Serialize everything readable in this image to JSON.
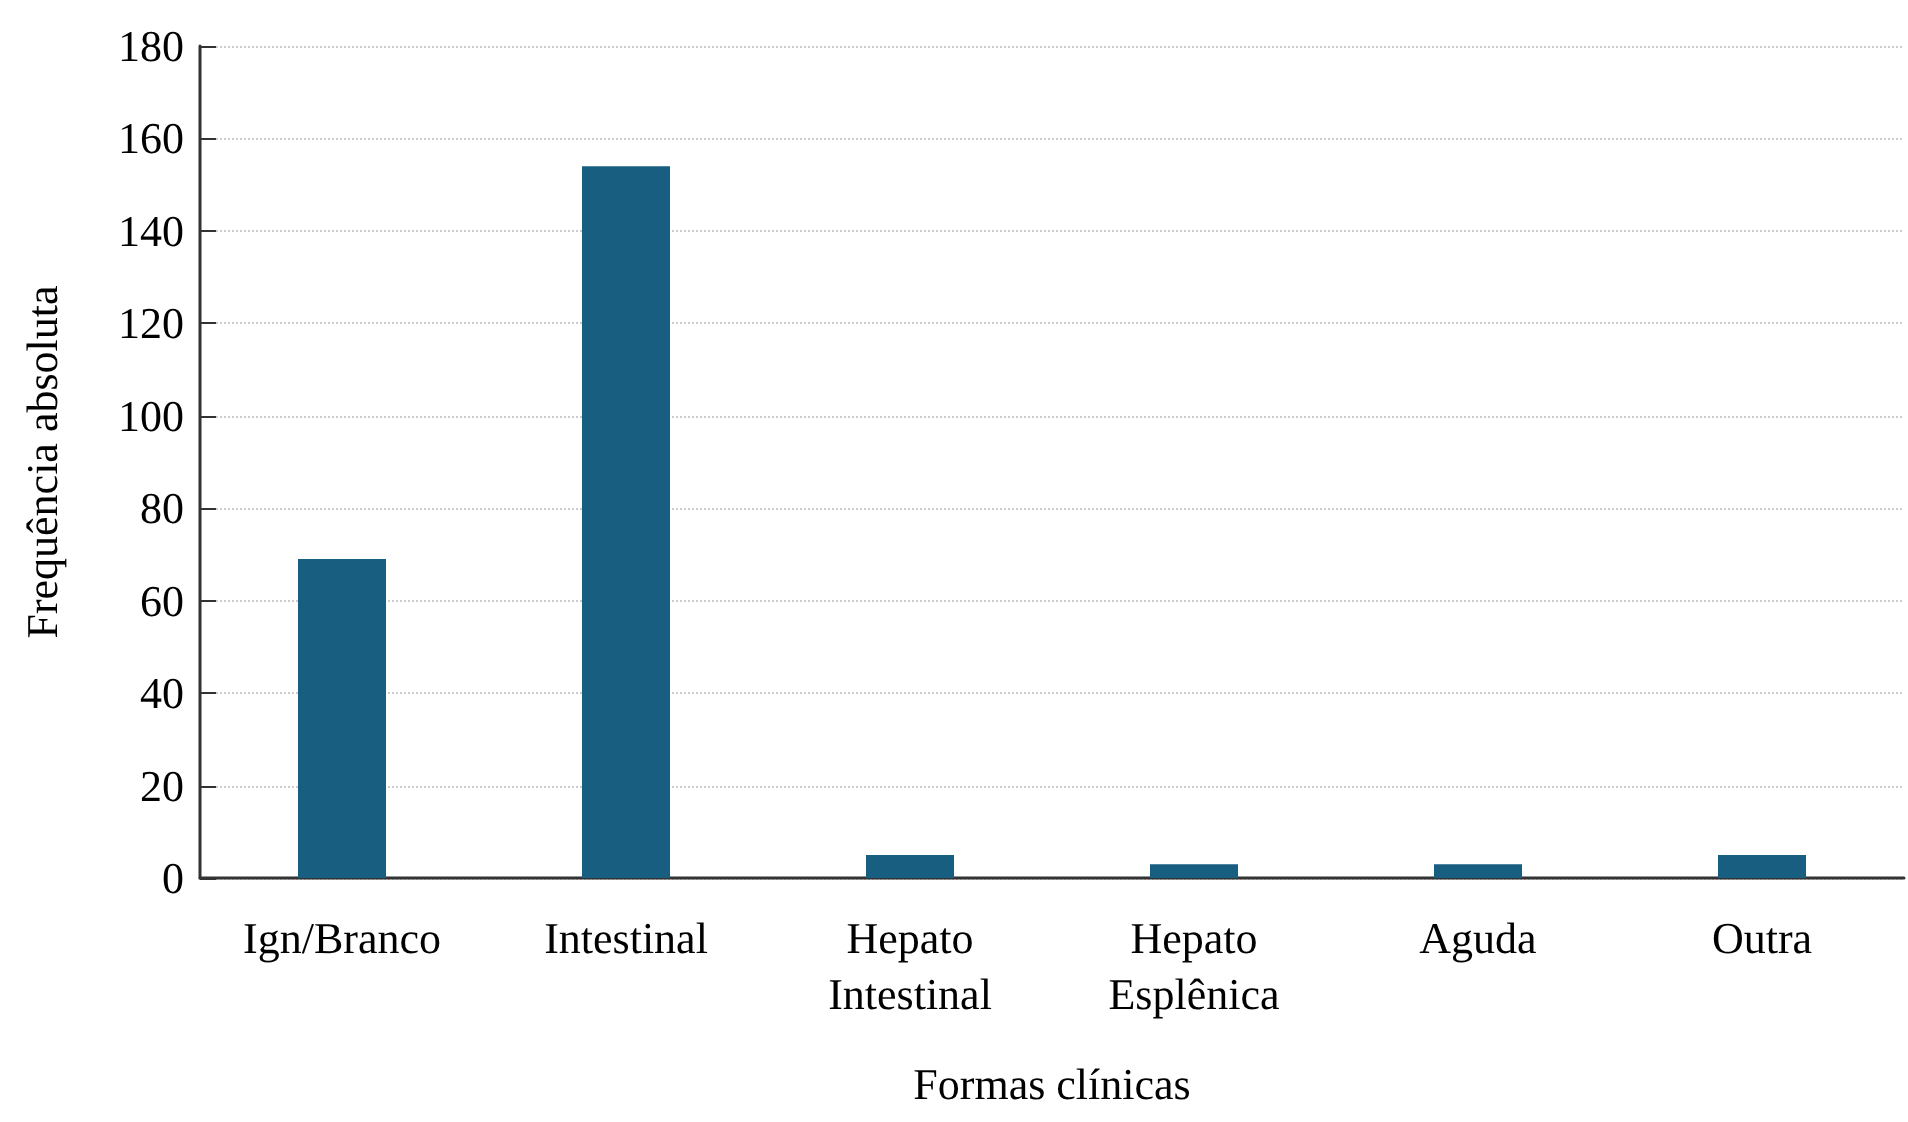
{
  "chart_data": {
    "type": "bar",
    "xlabel": "Formas clínicas",
    "ylabel": "Frequência absoluta",
    "categories": [
      "Ign/Branco",
      "Intestinal",
      "Hepato Intestinal",
      "Hepato Esplênica",
      "Aguda",
      "Outra"
    ],
    "values": [
      69,
      154,
      5,
      3,
      3,
      5
    ],
    "color": "#175e81",
    "ylim": [
      0,
      180
    ],
    "yticks": [
      0,
      20,
      40,
      60,
      80,
      100,
      120,
      140,
      160,
      180
    ],
    "grid": "y"
  }
}
